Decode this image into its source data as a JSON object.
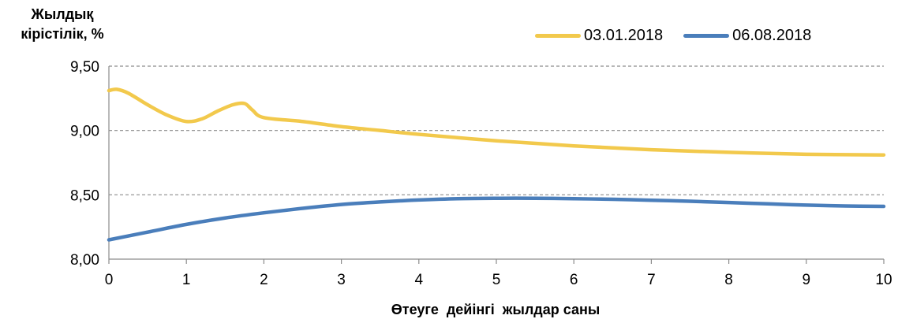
{
  "chart_data": {
    "type": "line",
    "ylabel_lines": [
      "Жылдық",
      "кірістілік, %"
    ],
    "xlabel": "Өтеуге  дейінгі  жылдар саны",
    "xlim": [
      0,
      10
    ],
    "ylim": [
      8.0,
      9.5
    ],
    "x_ticks": [
      "0",
      "1",
      "2",
      "3",
      "4",
      "5",
      "6",
      "7",
      "8",
      "9",
      "10"
    ],
    "y_ticks": [
      "8,00",
      "8,50",
      "9,00",
      "9,50"
    ],
    "grid": true,
    "legend_position": "top-right",
    "series": [
      {
        "name": "03.01.2018",
        "color": "#F2C94C",
        "x": [
          0,
          0.1,
          0.25,
          0.5,
          0.75,
          1.0,
          1.2,
          1.4,
          1.6,
          1.75,
          1.85,
          2.0,
          2.5,
          3.0,
          3.5,
          4.0,
          5.0,
          6.0,
          7.0,
          8.0,
          9.0,
          10.0
        ],
        "y": [
          9.31,
          9.32,
          9.29,
          9.2,
          9.12,
          9.07,
          9.09,
          9.15,
          9.2,
          9.21,
          9.16,
          9.1,
          9.07,
          9.03,
          9.0,
          8.97,
          8.92,
          8.88,
          8.85,
          8.83,
          8.815,
          8.81
        ]
      },
      {
        "name": "06.08.2018",
        "color": "#4A7EBB",
        "x": [
          0,
          0.5,
          1.0,
          1.5,
          2.0,
          2.5,
          3.0,
          3.5,
          4.0,
          4.5,
          5.0,
          5.5,
          6.0,
          6.5,
          7.0,
          7.5,
          8.0,
          8.5,
          9.0,
          9.5,
          10.0
        ],
        "y": [
          8.15,
          8.21,
          8.27,
          8.32,
          8.36,
          8.395,
          8.425,
          8.445,
          8.46,
          8.47,
          8.473,
          8.473,
          8.47,
          8.465,
          8.458,
          8.45,
          8.44,
          8.43,
          8.42,
          8.413,
          8.41
        ]
      }
    ]
  }
}
